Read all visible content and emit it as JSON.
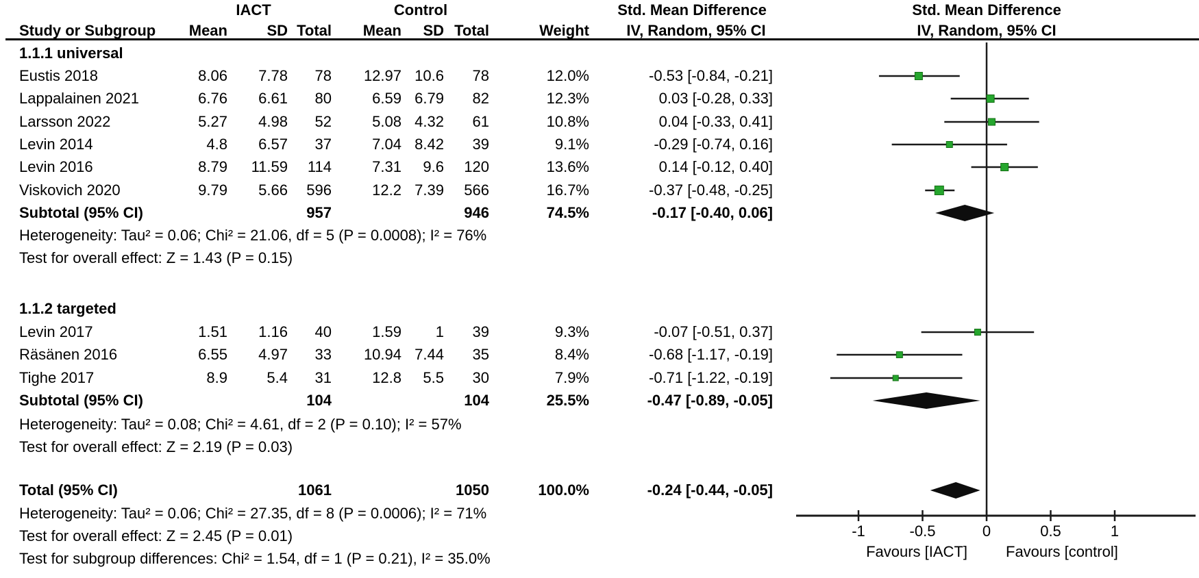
{
  "header": {
    "group_iact": "IACT",
    "group_control": "Control",
    "smd_text_col": "Std. Mean Difference",
    "smd_plot_col": "Std. Mean Difference",
    "col_study": "Study or Subgroup",
    "col_mean": "Mean",
    "col_sd": "SD",
    "col_total": "Total",
    "col_weight": "Weight",
    "col_ci_text": "IV, Random, 95% CI",
    "col_ci_plot": "IV, Random, 95% CI"
  },
  "chart_data": {
    "type": "forest",
    "effect_measure": "Std. Mean Difference",
    "model": "IV, Random, 95% CI",
    "axis_ticks": [
      -1,
      -0.5,
      0,
      0.5,
      1
    ],
    "axis_tick_labels": [
      "-1",
      "-0.5",
      "0",
      "0.5",
      "1"
    ],
    "xlim": [
      -1.66,
      1.66
    ],
    "favours_left": "Favours [IACT]",
    "favours_right": "Favours [control]",
    "marker_color": "#26A62E",
    "marker_edge_color": "#157015",
    "line_color": "#1a1a1a",
    "diamond_color": "#0d0d0d",
    "subgroups": [
      {
        "label": "1.1.1 universal",
        "studies": [
          {
            "study": "Eustis 2018",
            "iact_mean": "8.06",
            "iact_sd": "7.78",
            "iact_total": "78",
            "control_mean": "12.97",
            "control_sd": "10.6",
            "control_total": "78",
            "weight": "12.0%",
            "ci_label": "-0.53 [-0.84, -0.21]",
            "est": -0.53,
            "lo": -0.84,
            "hi": -0.21,
            "weight_pct": 12.0
          },
          {
            "study": "Lappalainen 2021",
            "iact_mean": "6.76",
            "iact_sd": "6.61",
            "iact_total": "80",
            "control_mean": "6.59",
            "control_sd": "6.79",
            "control_total": "82",
            "weight": "12.3%",
            "ci_label": "0.03 [-0.28, 0.33]",
            "est": 0.03,
            "lo": -0.28,
            "hi": 0.33,
            "weight_pct": 12.3
          },
          {
            "study": "Larsson 2022",
            "iact_mean": "5.27",
            "iact_sd": "4.98",
            "iact_total": "52",
            "control_mean": "5.08",
            "control_sd": "4.32",
            "control_total": "61",
            "weight": "10.8%",
            "ci_label": "0.04 [-0.33, 0.41]",
            "est": 0.04,
            "lo": -0.33,
            "hi": 0.41,
            "weight_pct": 10.8
          },
          {
            "study": "Levin 2014",
            "iact_mean": "4.8",
            "iact_sd": "6.57",
            "iact_total": "37",
            "control_mean": "7.04",
            "control_sd": "8.42",
            "control_total": "39",
            "weight": "9.1%",
            "ci_label": "-0.29 [-0.74, 0.16]",
            "est": -0.29,
            "lo": -0.74,
            "hi": 0.16,
            "weight_pct": 9.1
          },
          {
            "study": "Levin 2016",
            "iact_mean": "8.79",
            "iact_sd": "11.59",
            "iact_total": "114",
            "control_mean": "7.31",
            "control_sd": "9.6",
            "control_total": "120",
            "weight": "13.6%",
            "ci_label": "0.14 [-0.12, 0.40]",
            "est": 0.14,
            "lo": -0.12,
            "hi": 0.4,
            "weight_pct": 13.6
          },
          {
            "study": "Viskovich 2020",
            "iact_mean": "9.79",
            "iact_sd": "5.66",
            "iact_total": "596",
            "control_mean": "12.2",
            "control_sd": "7.39",
            "control_total": "566",
            "weight": "16.7%",
            "ci_label": "-0.37 [-0.48, -0.25]",
            "est": -0.37,
            "lo": -0.48,
            "hi": -0.25,
            "weight_pct": 16.7
          }
        ],
        "subtotal": {
          "label": "Subtotal (95% CI)",
          "iact_total": "957",
          "control_total": "946",
          "weight": "74.5%",
          "ci_label": "-0.17 [-0.40, 0.06]",
          "est": -0.17,
          "lo": -0.4,
          "hi": 0.06
        },
        "heterogeneity": "Heterogeneity: Tau² = 0.06; Chi² = 21.06, df = 5 (P = 0.0008); I² = 76%",
        "overall_effect": "Test for overall effect: Z = 1.43 (P = 0.15)"
      },
      {
        "label": "1.1.2 targeted",
        "studies": [
          {
            "study": "Levin 2017",
            "iact_mean": "1.51",
            "iact_sd": "1.16",
            "iact_total": "40",
            "control_mean": "1.59",
            "control_sd": "1",
            "control_total": "39",
            "weight": "9.3%",
            "ci_label": "-0.07 [-0.51, 0.37]",
            "est": -0.07,
            "lo": -0.51,
            "hi": 0.37,
            "weight_pct": 9.3
          },
          {
            "study": "Räsänen 2016",
            "iact_mean": "6.55",
            "iact_sd": "4.97",
            "iact_total": "33",
            "control_mean": "10.94",
            "control_sd": "7.44",
            "control_total": "35",
            "weight": "8.4%",
            "ci_label": "-0.68 [-1.17, -0.19]",
            "est": -0.68,
            "lo": -1.17,
            "hi": -0.19,
            "weight_pct": 8.4
          },
          {
            "study": "Tighe 2017",
            "iact_mean": "8.9",
            "iact_sd": "5.4",
            "iact_total": "31",
            "control_mean": "12.8",
            "control_sd": "5.5",
            "control_total": "30",
            "weight": "7.9%",
            "ci_label": "-0.71 [-1.22, -0.19]",
            "est": -0.71,
            "lo": -1.22,
            "hi": -0.19,
            "weight_pct": 7.9
          }
        ],
        "subtotal": {
          "label": "Subtotal (95% CI)",
          "iact_total": "104",
          "control_total": "104",
          "weight": "25.5%",
          "ci_label": "-0.47 [-0.89, -0.05]",
          "est": -0.47,
          "lo": -0.89,
          "hi": -0.05
        },
        "heterogeneity": "Heterogeneity: Tau² = 0.08; Chi² = 4.61, df = 2 (P = 0.10); I² = 57%",
        "overall_effect": "Test for overall effect: Z = 2.19 (P = 0.03)"
      }
    ],
    "total": {
      "label": "Total (95% CI)",
      "iact_total": "1061",
      "control_total": "1050",
      "weight": "100.0%",
      "ci_label": "-0.24 [-0.44, -0.05]",
      "est": -0.24,
      "lo": -0.44,
      "hi": -0.05
    },
    "total_heterogeneity": "Heterogeneity: Tau² = 0.06; Chi² = 27.35, df = 8 (P = 0.0006); I² = 71%",
    "total_overall_effect": "Test for overall effect: Z = 2.45 (P = 0.01)",
    "subgroup_differences": "Test for subgroup differences: Chi² = 1.54, df = 1 (P = 0.21), I² = 35.0%"
  }
}
